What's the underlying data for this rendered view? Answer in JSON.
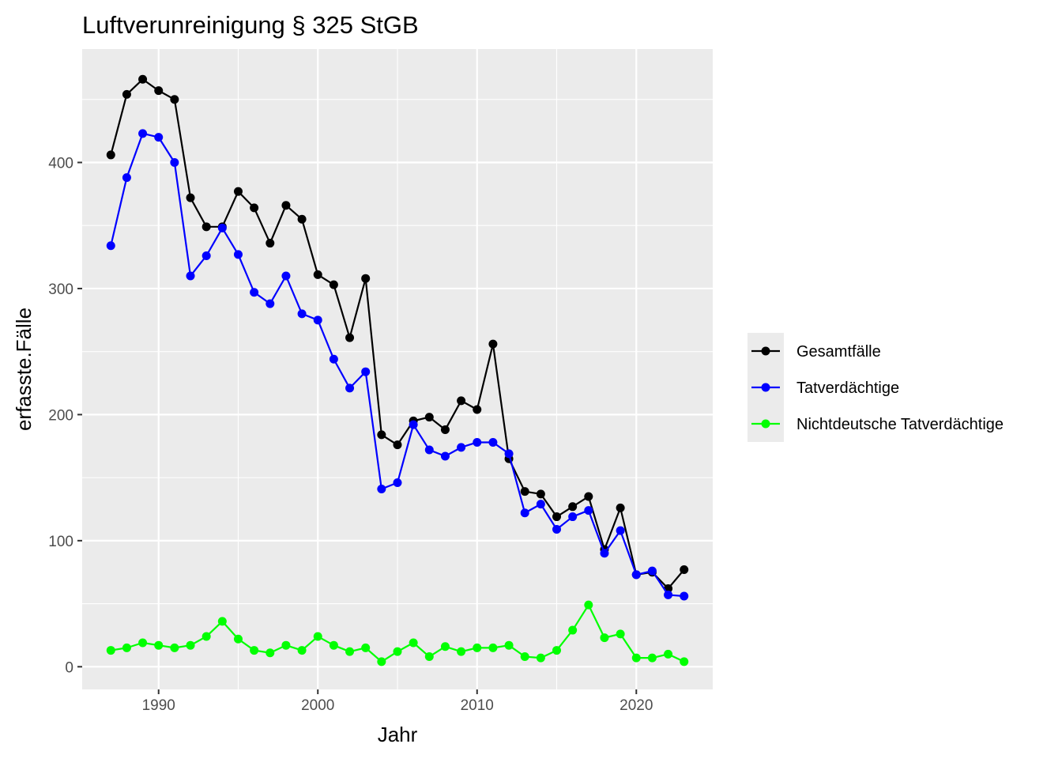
{
  "chart_data": {
    "type": "line",
    "title": "Luftverunreinigung § 325 StGB",
    "xlabel": "Jahr",
    "ylabel": "erfasste.Fälle",
    "xlim": [
      1985.2,
      2024.8
    ],
    "ylim": [
      -18,
      490
    ],
    "x_ticks": [
      1990,
      2000,
      2010,
      2020
    ],
    "y_ticks": [
      0,
      100,
      200,
      300,
      400
    ],
    "grid": true,
    "legend_position": "right",
    "x": [
      1987,
      1988,
      1989,
      1990,
      1991,
      1992,
      1993,
      1994,
      1995,
      1996,
      1997,
      1998,
      1999,
      2000,
      2001,
      2002,
      2003,
      2004,
      2005,
      2006,
      2007,
      2008,
      2009,
      2010,
      2011,
      2012,
      2013,
      2014,
      2015,
      2016,
      2017,
      2018,
      2019,
      2020,
      2021,
      2022,
      2023
    ],
    "series": [
      {
        "name": "Gesamtfälle",
        "color": "#000000",
        "values": [
          406,
          454,
          466,
          457,
          450,
          372,
          349,
          349,
          377,
          364,
          336,
          366,
          355,
          311,
          303,
          261,
          308,
          184,
          176,
          195,
          198,
          188,
          211,
          204,
          256,
          165,
          139,
          137,
          119,
          127,
          135,
          93,
          126,
          73,
          75,
          62,
          77
        ]
      },
      {
        "name": "Tatverdächtige",
        "color": "#0000ff",
        "values": [
          334,
          388,
          423,
          420,
          400,
          310,
          326,
          348,
          327,
          297,
          288,
          310,
          280,
          275,
          244,
          221,
          234,
          141,
          146,
          192,
          172,
          167,
          174,
          178,
          178,
          169,
          122,
          129,
          109,
          119,
          124,
          90,
          108,
          73,
          76,
          57,
          56
        ]
      },
      {
        "name": "Nichtdeutsche Tatverdächtige",
        "color": "#00ff00",
        "values": [
          13,
          15,
          19,
          17,
          15,
          17,
          24,
          36,
          22,
          13,
          11,
          17,
          13,
          24,
          17,
          12,
          15,
          4,
          12,
          19,
          8,
          16,
          12,
          15,
          15,
          17,
          8,
          7,
          13,
          29,
          49,
          23,
          26,
          7,
          7,
          10,
          4
        ]
      }
    ]
  }
}
